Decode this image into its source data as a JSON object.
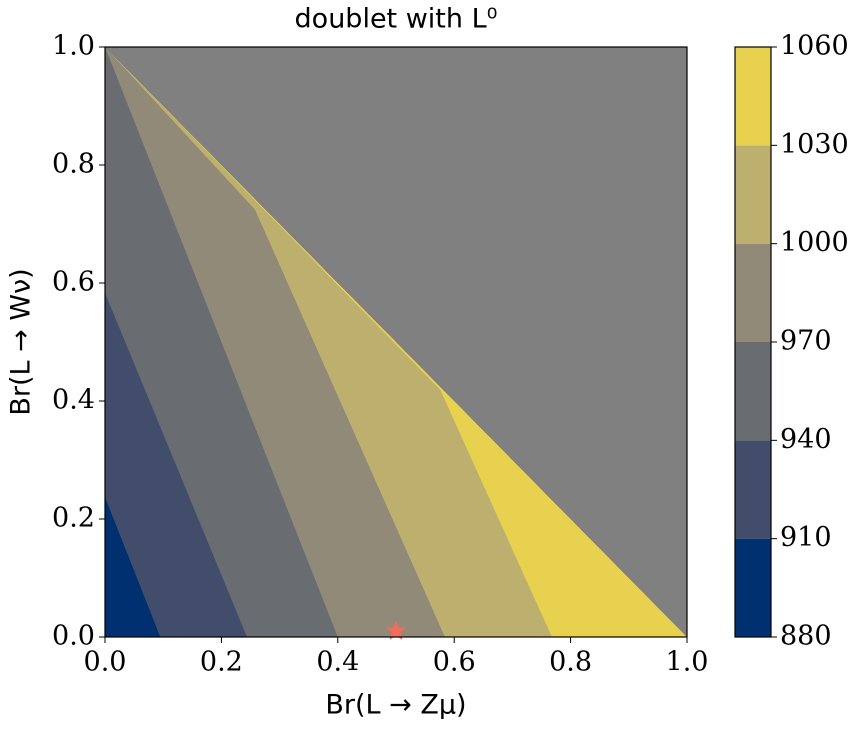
{
  "chart_data": {
    "type": "contour",
    "title": "doublet with L⁰",
    "xlabel": "Br(L → Zμ)",
    "ylabel": "Br(L → Wν)",
    "xlim": [
      0,
      1
    ],
    "ylim": [
      0,
      1
    ],
    "xticks": [
      {
        "value": 0,
        "label": "0.0"
      },
      {
        "value": 0.2,
        "label": "0.2"
      },
      {
        "value": 0.4,
        "label": "0.4"
      },
      {
        "value": 0.6,
        "label": "0.6"
      },
      {
        "value": 0.8,
        "label": "0.8"
      },
      {
        "value": 1,
        "label": "1.0"
      }
    ],
    "yticks": [
      {
        "value": 0,
        "label": "0.0"
      },
      {
        "value": 0.2,
        "label": "0.2"
      },
      {
        "value": 0.4,
        "label": "0.4"
      },
      {
        "value": 0.6,
        "label": "0.6"
      },
      {
        "value": 0.8,
        "label": "0.8"
      },
      {
        "value": 1,
        "label": "1.0"
      }
    ],
    "levels": [
      880,
      910,
      940,
      970,
      1000,
      1030,
      1060
    ],
    "colors": [
      "#00306f",
      "#414d6b",
      "#696c71",
      "#918a78",
      "#bdb06f",
      "#e7d14f"
    ],
    "background_color": "#808080",
    "boundaries": [
      {
        "x": [
          0,
          0.095
        ],
        "y": [
          0.237,
          0
        ]
      },
      {
        "x": [
          0,
          0.244
        ],
        "y": [
          0.583,
          0
        ]
      },
      {
        "x": [
          0,
          0.4
        ],
        "y": [
          1,
          0
        ]
      },
      {
        "x": [
          0.258,
          0.584
        ],
        "y": [
          0.724,
          0
        ]
      },
      {
        "x": [
          0.576,
          0.768
        ],
        "y": [
          0.419,
          0
        ]
      }
    ],
    "marker": {
      "x": 0.5,
      "y": 0.01,
      "color": "#f26c5b"
    }
  }
}
